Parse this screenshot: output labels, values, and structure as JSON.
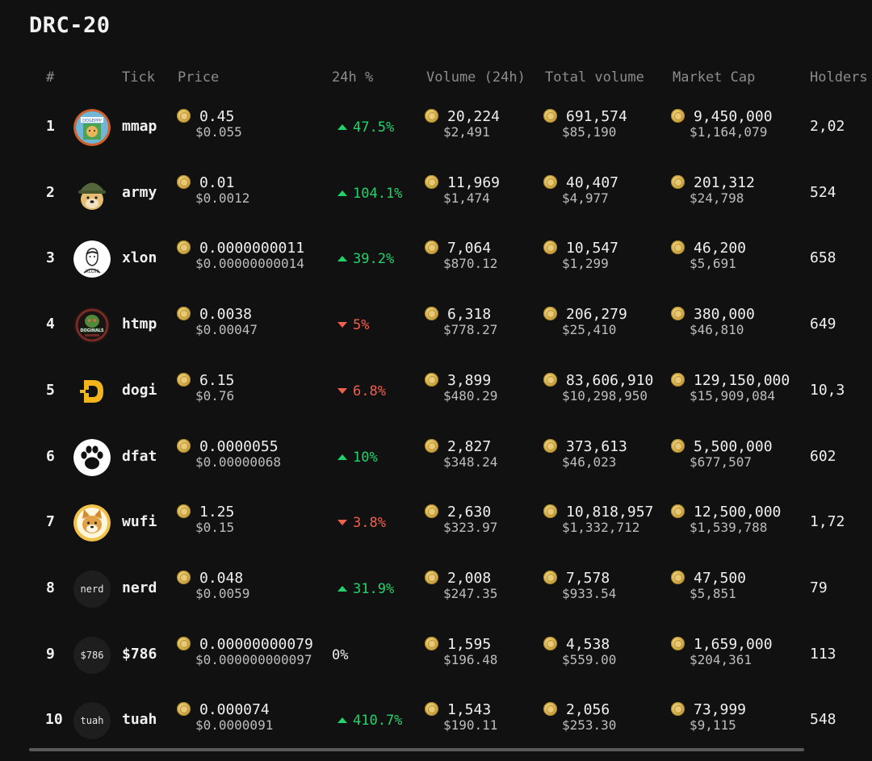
{
  "title": "DRC-20",
  "columns": {
    "rank": "#",
    "tick": "Tick",
    "price": "Price",
    "change": "24h %",
    "volume": "Volume (24h)",
    "total_volume": "Total volume",
    "market_cap": "Market Cap",
    "holders": "Holders"
  },
  "colors": {
    "up": "#22d36b",
    "down": "#f0604f",
    "background": "#111111"
  },
  "rows": [
    {
      "rank": "1",
      "tick": "mmap",
      "icon": "doge-frame-icon",
      "price": "0.45",
      "price_usd": "$0.055",
      "direction": "up",
      "change": "47.5%",
      "volume": "20,224",
      "volume_usd": "$2,491",
      "total_volume": "691,574",
      "total_volume_usd": "$85,190",
      "market_cap": "9,450,000",
      "market_cap_usd": "$1,164,079",
      "holders": "2,02"
    },
    {
      "rank": "2",
      "tick": "army",
      "icon": "doge-helmet-icon",
      "price": "0.01",
      "price_usd": "$0.0012",
      "direction": "up",
      "change": "104.1%",
      "volume": "11,969",
      "volume_usd": "$1,474",
      "total_volume": "40,407",
      "total_volume_usd": "$4,977",
      "market_cap": "201,312",
      "market_cap_usd": "$24,798",
      "holders": "524"
    },
    {
      "rank": "3",
      "tick": "xlon",
      "icon": "xlon-sketch-icon",
      "price": "0.0000000011",
      "price_usd": "$0.00000000014",
      "direction": "up",
      "change": "39.2%",
      "volume": "7,064",
      "volume_usd": "$870.12",
      "total_volume": "10,547",
      "total_volume_usd": "$1,299",
      "market_cap": "46,200",
      "market_cap_usd": "$5,691",
      "holders": "658"
    },
    {
      "rank": "4",
      "tick": "htmp",
      "icon": "doginals-badge-icon",
      "price": "0.0038",
      "price_usd": "$0.00047",
      "direction": "down",
      "change": "5%",
      "volume": "6,318",
      "volume_usd": "$778.27",
      "total_volume": "206,279",
      "total_volume_usd": "$25,410",
      "market_cap": "380,000",
      "market_cap_usd": "$46,810",
      "holders": "649"
    },
    {
      "rank": "5",
      "tick": "dogi",
      "icon": "dogi-d-logo-icon",
      "price": "6.15",
      "price_usd": "$0.76",
      "direction": "down",
      "change": "6.8%",
      "volume": "3,899",
      "volume_usd": "$480.29",
      "total_volume": "83,606,910",
      "total_volume_usd": "$10,298,950",
      "market_cap": "129,150,000",
      "market_cap_usd": "$15,909,084",
      "holders": "10,3"
    },
    {
      "rank": "6",
      "tick": "dfat",
      "icon": "paw-print-icon",
      "price": "0.0000055",
      "price_usd": "$0.00000068",
      "direction": "up",
      "change": "10%",
      "volume": "2,827",
      "volume_usd": "$348.24",
      "total_volume": "373,613",
      "total_volume_usd": "$46,023",
      "market_cap": "5,500,000",
      "market_cap_usd": "$677,507",
      "holders": "602"
    },
    {
      "rank": "7",
      "tick": "wufi",
      "icon": "shiba-face-icon",
      "price": "1.25",
      "price_usd": "$0.15",
      "direction": "down",
      "change": "3.8%",
      "volume": "2,630",
      "volume_usd": "$323.97",
      "total_volume": "10,818,957",
      "total_volume_usd": "$1,332,712",
      "market_cap": "12,500,000",
      "market_cap_usd": "$1,539,788",
      "holders": "1,72"
    },
    {
      "rank": "8",
      "tick": "nerd",
      "icon": "text-icon",
      "icon_text": "nerd",
      "price": "0.048",
      "price_usd": "$0.0059",
      "direction": "up",
      "change": "31.9%",
      "volume": "2,008",
      "volume_usd": "$247.35",
      "total_volume": "7,578",
      "total_volume_usd": "$933.54",
      "market_cap": "47,500",
      "market_cap_usd": "$5,851",
      "holders": "79"
    },
    {
      "rank": "9",
      "tick": "$786",
      "icon": "text-icon",
      "icon_text": "$786",
      "price": "0.00000000079",
      "price_usd": "$0.000000000097",
      "direction": "flat",
      "change": "0%",
      "volume": "1,595",
      "volume_usd": "$196.48",
      "total_volume": "4,538",
      "total_volume_usd": "$559.00",
      "market_cap": "1,659,000",
      "market_cap_usd": "$204,361",
      "holders": "113"
    },
    {
      "rank": "10",
      "tick": "tuah",
      "icon": "text-icon",
      "icon_text": "tuah",
      "price": "0.000074",
      "price_usd": "$0.0000091",
      "direction": "up",
      "change": "410.7%",
      "volume": "1,543",
      "volume_usd": "$190.11",
      "total_volume": "2,056",
      "total_volume_usd": "$253.30",
      "market_cap": "73,999",
      "market_cap_usd": "$9,115",
      "holders": "548"
    }
  ]
}
